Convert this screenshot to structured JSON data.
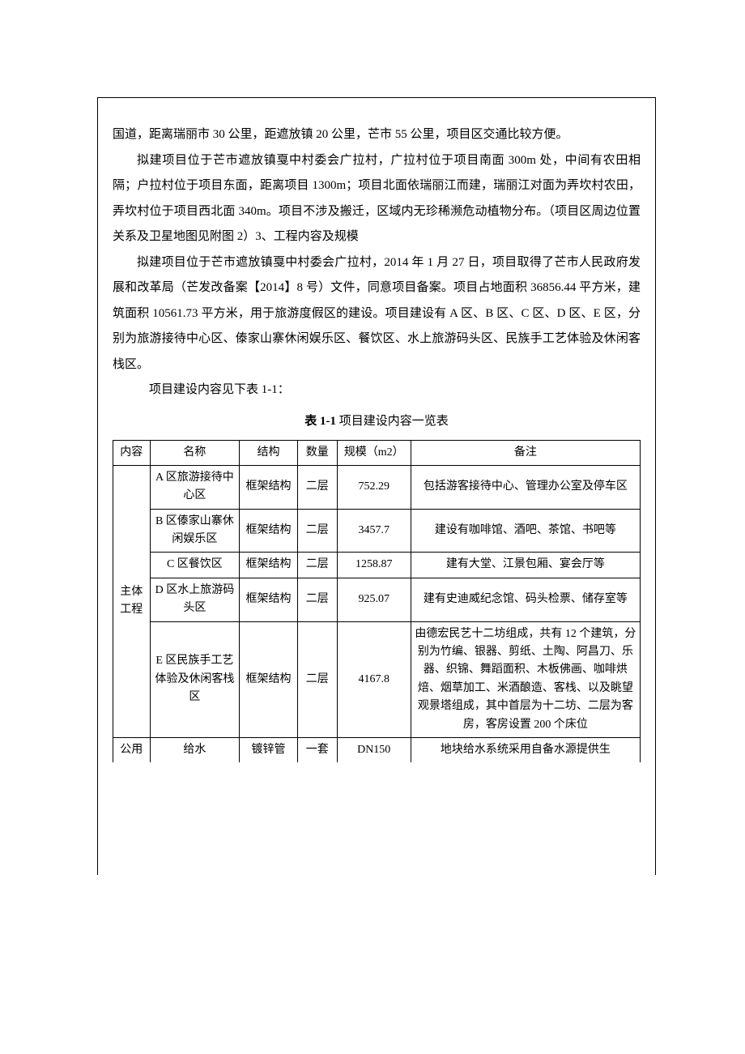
{
  "paragraphs": {
    "p1": "国道，距离瑞丽市 30 公里，距遮放镇 20 公里，芒市 55 公里，项目区交通比较方便。",
    "p2": "拟建项目位于芒市遮放镇戛中村委会广拉村，广拉村位于项目南面 300m 处，中间有农田相隔；户拉村位于项目东面，距离项目 1300m；项目北面依瑞丽江而建，瑞丽江对面为弄坎村农田，弄坎村位于项目西北面 340m。项目不涉及搬迁，区域内无珍稀濒危动植物分布。（项目区周边位置关系及卫星地图见附图 2）3、工程内容及规模",
    "p3": "拟建项目位于芒市遮放镇戛中村委会广拉村，2014 年 1 月 27 日，项目取得了芒市人民政府发展和改革局（芒发改备案【2014】8 号）文件，同意项目备案。项目占地面积 36856.44 平方米，建筑面积 10561.73 平方米，用于旅游度假区的建设。项目建设有 A 区、B 区、C 区、D 区、E 区，分别为旅游接待中心区、傣家山寨休闲娱乐区、餐饮区、水上旅游码头区、民族手工艺体验及休闲客栈区。",
    "p4": "项目建设内容见下表 1-1："
  },
  "table": {
    "title_prefix": "表 1-1 ",
    "title_text": "项目建设内容一览表",
    "headers": {
      "c0": "内容",
      "c1": "名称",
      "c2": "结构",
      "c3": "数量",
      "c4": "规模（m2）",
      "c5": "备注"
    },
    "group1": "主体工程",
    "group2": "公用",
    "rows": [
      {
        "name": "A 区旅游接待中心区",
        "struct": "框架结构",
        "qty": "二层",
        "scale": "752.29",
        "note": "包括游客接待中心、管理办公室及停车区"
      },
      {
        "name": "B 区傣家山寨休闲娱乐区",
        "struct": "框架结构",
        "qty": "二层",
        "scale": "3457.7",
        "note": "建设有咖啡馆、酒吧、茶馆、书吧等"
      },
      {
        "name": "C 区餐饮区",
        "struct": "框架结构",
        "qty": "二层",
        "scale": "1258.87",
        "note": "建有大堂、江景包厢、宴会厅等"
      },
      {
        "name": "D 区水上旅游码头区",
        "struct": "框架结构",
        "qty": "二层",
        "scale": "925.07",
        "note": "建有史迪威纪念馆、码头检票、储存室等"
      },
      {
        "name": "E 区民族手工艺体验及休闲客栈区",
        "struct": "框架结构",
        "qty": "二层",
        "scale": "4167.8",
        "note": "由德宏民艺十二坊组成，共有 12 个建筑，分别为竹编、银器、剪纸、土陶、阿昌刀、乐器、织锦、舞蹈面积、木板佛画、咖啡烘焙、烟草加工、米酒酿造、客栈、以及眺望观景塔组成，其中首层为十二坊、二层为客房，客房设置 200 个床位"
      },
      {
        "name": "给水",
        "struct": "镀锌管",
        "qty": "一套",
        "scale": "DN150",
        "note": "地块给水系统采用自备水源提供生"
      }
    ]
  },
  "colors": {
    "text": "#000000",
    "background": "#ffffff",
    "border": "#000000"
  }
}
